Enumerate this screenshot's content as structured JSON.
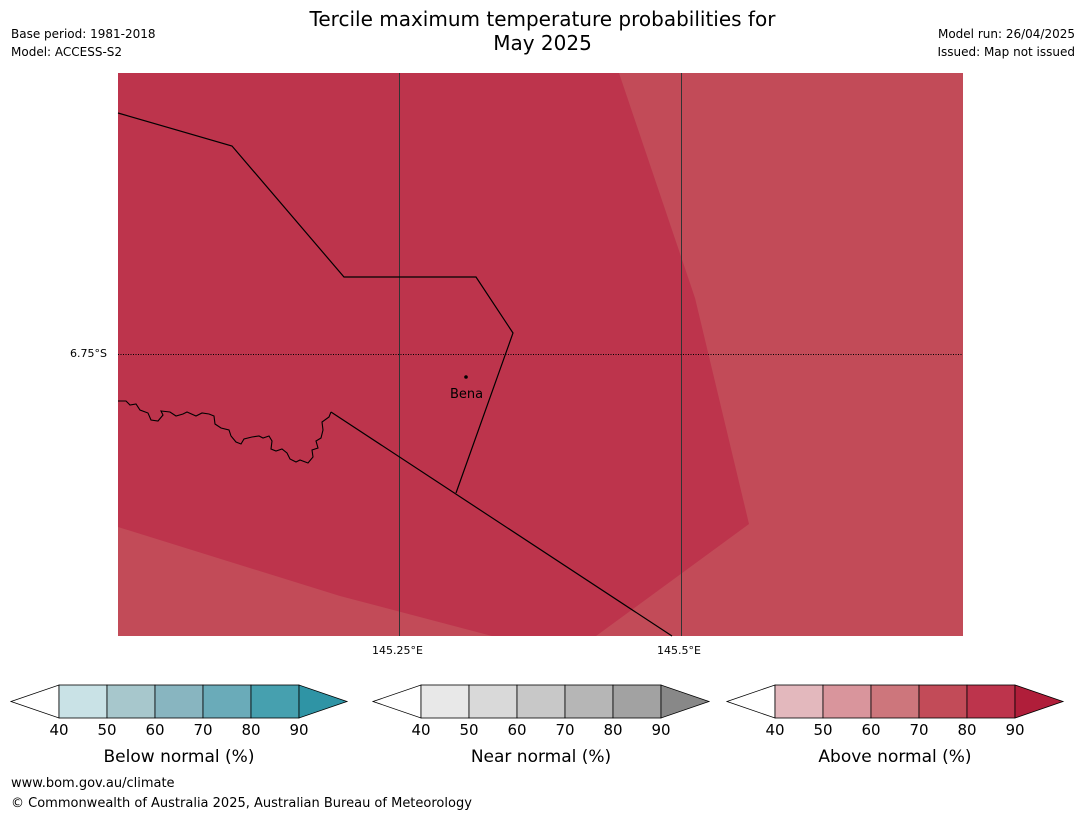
{
  "header": {
    "title": "Tercile maximum temperature probabilities for\nMay 2025",
    "base_period": "Base period: 1981-2018",
    "model": "Model: ACCESS-S2",
    "model_run": "Model run: 26/04/2025",
    "issued": "Issued: Map not issued"
  },
  "map": {
    "lat_label": "6.75°S",
    "lon_labels": [
      "145.25°E",
      "145.5°E"
    ],
    "place_label": "Bena",
    "colors": {
      "high_prob": "#bd344c",
      "mid_prob": "#c24b58",
      "gridline": "#333333",
      "border": "#000000"
    }
  },
  "legends": [
    {
      "label": "Below normal (%)",
      "ticks": [
        "40",
        "50",
        "60",
        "70",
        "80",
        "90"
      ],
      "colors": [
        "#ffffff",
        "#c9e2e6",
        "#a7c7cc",
        "#88b5c0",
        "#6aabb9",
        "#46a0af",
        "#2f94a5"
      ]
    },
    {
      "label": "Near normal (%)",
      "ticks": [
        "40",
        "50",
        "60",
        "70",
        "80",
        "90"
      ],
      "colors": [
        "#ffffff",
        "#e8e8e8",
        "#d9d9d9",
        "#c8c8c8",
        "#b6b6b6",
        "#a2a2a2",
        "#888888"
      ]
    },
    {
      "label": "Above normal (%)",
      "ticks": [
        "40",
        "50",
        "60",
        "70",
        "80",
        "90"
      ],
      "colors": [
        "#ffffff",
        "#e3b8bd",
        "#d9959c",
        "#cd767c",
        "#c24b58",
        "#bd344c",
        "#b01e3a"
      ]
    }
  ],
  "footer": {
    "url": "www.bom.gov.au/climate",
    "copyright": "© Commonwealth of Australia 2025, Australian Bureau of Meteorology"
  }
}
